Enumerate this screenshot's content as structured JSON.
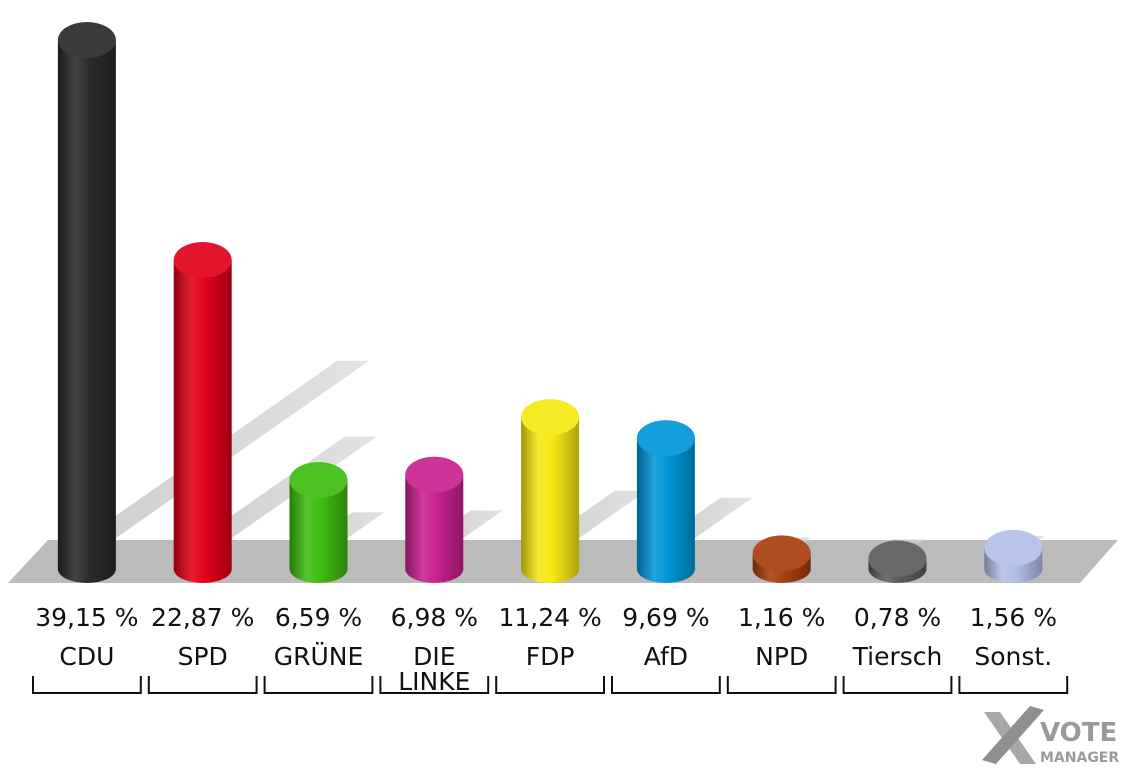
{
  "chart_data": {
    "type": "bar",
    "categories": [
      "CDU",
      "SPD",
      "GRÜNE",
      "DIE LINKE",
      "FDP",
      "AfD",
      "NPD",
      "Tiersch",
      "Sonst."
    ],
    "category_lines": [
      [
        "CDU"
      ],
      [
        "SPD"
      ],
      [
        "GRÜNE"
      ],
      [
        "DIE",
        "LINKE"
      ],
      [
        "FDP"
      ],
      [
        "AfD"
      ],
      [
        "NPD"
      ],
      [
        "Tiersch"
      ],
      [
        "Sonst."
      ]
    ],
    "values": [
      39.15,
      22.87,
      6.59,
      6.98,
      11.24,
      9.69,
      1.16,
      0.78,
      1.56
    ],
    "value_labels": [
      "39,15 %",
      "22,87 %",
      "6,59 %",
      "6,98 %",
      "11,24 %",
      "9,69 %",
      "1,16 %",
      "0,78 %",
      "1,56 %"
    ],
    "colors": [
      "#2a2a2a",
      "#e2001a",
      "#3dbd0e",
      "#c8218f",
      "#f5e812",
      "#0096d8",
      "#a83e0e",
      "#5c5c5c",
      "#b2bfe8"
    ],
    "ylim": [
      0,
      39.15
    ],
    "grid": false,
    "legend": "none"
  },
  "logo": {
    "line1": "VOTE",
    "line2": "MANAGER"
  }
}
